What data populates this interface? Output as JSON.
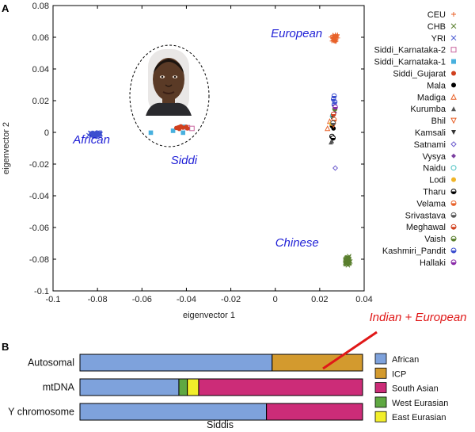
{
  "panel_a_label": "A",
  "panel_b_label": "B",
  "chart_data": [
    {
      "type": "scatter",
      "xlabel": "eigenvector 1",
      "ylabel": "eigenvector 2",
      "xlim": [
        -0.1,
        0.04
      ],
      "ylim": [
        -0.1,
        0.08
      ],
      "xticks": [
        "-0.1",
        "-0.08",
        "-0.06",
        "-0.04",
        "-0.02",
        "0",
        "0.02",
        "0.04"
      ],
      "yticks": [
        "0.08",
        "0.06",
        "0.04",
        "0.02",
        "0",
        "-0.02",
        "-0.04",
        "-0.06",
        "-0.08",
        "-0.1"
      ],
      "annotations": [
        {
          "text": "European",
          "x": -0.002,
          "y": 0.06
        },
        {
          "text": "African",
          "x": -0.091,
          "y": -0.007
        },
        {
          "text": "Siddi",
          "x": -0.047,
          "y": -0.02
        },
        {
          "text": "Chinese",
          "x": 0.0,
          "y": -0.072
        }
      ],
      "legend_position": "right",
      "series": [
        {
          "name": "CEU",
          "color": "#e8622a",
          "marker": "plus",
          "center": [
            0.027,
            0.0595
          ],
          "spread": [
            0.0012,
            0.0018
          ]
        },
        {
          "name": "CHB",
          "color": "#5a7f2e",
          "marker": "x",
          "center": [
            0.0325,
            -0.081
          ],
          "spread": [
            0.0009,
            0.0022
          ]
        },
        {
          "name": "YRI",
          "color": "#3d4fcf",
          "marker": "x",
          "center": [
            -0.0805,
            -0.0012
          ],
          "spread": [
            0.0022,
            0.0009
          ]
        },
        {
          "name": "Siddi_Karnataka-2",
          "color": "#c8649e",
          "marker": "square-open",
          "points": [
            [
              -0.0375,
              0.0025
            ],
            [
              -0.0395,
              0.003
            ]
          ]
        },
        {
          "name": "Siddi_Karnataka-1",
          "color": "#48b0de",
          "marker": "square",
          "points": [
            [
              -0.056,
              -0.0002
            ],
            [
              -0.046,
              0.001
            ],
            [
              -0.0415,
              -0.0002
            ],
            [
              -0.041,
              0.0035
            ]
          ]
        },
        {
          "name": "Siddi_Gujarat",
          "color": "#d0401e",
          "marker": "circle",
          "points": [
            [
              -0.0445,
              0.0028
            ],
            [
              -0.0435,
              0.0032
            ],
            [
              -0.0425,
              0.0038
            ],
            [
              -0.0415,
              0.003
            ],
            [
              -0.04,
              0.0035
            ],
            [
              -0.0395,
              0.0025
            ],
            [
              -0.0432,
              0.0022
            ]
          ]
        },
        {
          "name": "Mala",
          "color": "#000000",
          "marker": "circle",
          "points": [
            [
              0.0255,
              0.004
            ],
            [
              0.0262,
              0.0025
            ]
          ]
        },
        {
          "name": "Madiga",
          "color": "#e8622a",
          "marker": "triangle-open",
          "points": [
            [
              0.0235,
              0.0025
            ],
            [
              0.0245,
              0.007
            ]
          ]
        },
        {
          "name": "Kurumba",
          "color": "#555555",
          "marker": "triangle",
          "points": [
            [
              0.0255,
              -0.0055
            ],
            [
              0.025,
              -0.0062
            ]
          ]
        },
        {
          "name": "Bhil",
          "color": "#e8622a",
          "marker": "triangle-down-open",
          "points": [
            [
              0.0262,
              0.0045
            ]
          ]
        },
        {
          "name": "Kamsali",
          "color": "#333333",
          "marker": "triangle-down",
          "points": [
            [
              0.0255,
              0.009
            ]
          ]
        },
        {
          "name": "Satnami",
          "color": "#6a5acd",
          "marker": "diamond-open",
          "points": [
            [
              0.027,
              -0.0225
            ]
          ]
        },
        {
          "name": "Vysya",
          "color": "#7b3fa0",
          "marker": "diamond",
          "points": [
            [
              0.0268,
              0.0125
            ]
          ]
        },
        {
          "name": "Naidu",
          "color": "#48c0c0",
          "marker": "circle-open",
          "points": [
            [
              0.0258,
              0.0105
            ]
          ]
        },
        {
          "name": "Lodi",
          "color": "#f0b428",
          "marker": "circle",
          "points": [
            [
              0.0252,
              0.0055
            ]
          ]
        },
        {
          "name": "Tharu",
          "color": "#000000",
          "marker": "circle-half",
          "points": [
            [
              0.0255,
              -0.0025
            ],
            [
              0.026,
              -0.0035
            ]
          ]
        },
        {
          "name": "Velama",
          "color": "#e8622a",
          "marker": "circle-half",
          "points": [
            [
              0.0265,
              0.008
            ]
          ]
        },
        {
          "name": "Srivastava",
          "color": "#555555",
          "marker": "circle-half",
          "points": [
            [
              0.026,
              0.006
            ]
          ]
        },
        {
          "name": "Meghawal",
          "color": "#d0401e",
          "marker": "circle-half",
          "points": [
            [
              0.0262,
              0.0115
            ]
          ]
        },
        {
          "name": "Vaish",
          "color": "#5a7f2e",
          "marker": "circle-half",
          "points": [
            [
              0.0268,
              0.0148
            ]
          ]
        },
        {
          "name": "Kashmiri_Pandit",
          "color": "#3d4fcf",
          "marker": "circle-half",
          "points": [
            [
              0.0265,
              0.0175
            ],
            [
              0.0268,
              0.0192
            ],
            [
              0.0262,
              0.021
            ],
            [
              0.0265,
              0.023
            ]
          ]
        },
        {
          "name": "Hallaki",
          "color": "#8a2ba8",
          "marker": "circle-half",
          "points": [
            [
              0.027,
              0.016
            ]
          ]
        }
      ]
    },
    {
      "type": "bar",
      "orientation": "horizontal",
      "stacked": true,
      "xlabel": "Siddis",
      "categories": [
        "Autosomal",
        "mtDNA",
        "Y chromosome"
      ],
      "annotation": "Indian + European",
      "legend_position": "right",
      "series": [
        {
          "name": "African",
          "color": "#7ea2dc",
          "values": [
            0.68,
            0.35,
            0.66
          ]
        },
        {
          "name": "ICP",
          "color": "#d39a2e",
          "values": [
            0.32,
            0.0,
            0.0
          ]
        },
        {
          "name": "West Eurasian",
          "color": "#5fa842",
          "values": [
            0.0,
            0.03,
            0.0
          ]
        },
        {
          "name": "East Eurasian",
          "color": "#f2ee2a",
          "values": [
            0.0,
            0.04,
            0.0
          ]
        },
        {
          "name": "South Asian",
          "color": "#cc2c78",
          "values": [
            0.0,
            0.58,
            0.34
          ]
        }
      ],
      "legend_order": [
        "African",
        "ICP",
        "South Asian",
        "West Eurasian",
        "East Eurasian"
      ]
    }
  ]
}
